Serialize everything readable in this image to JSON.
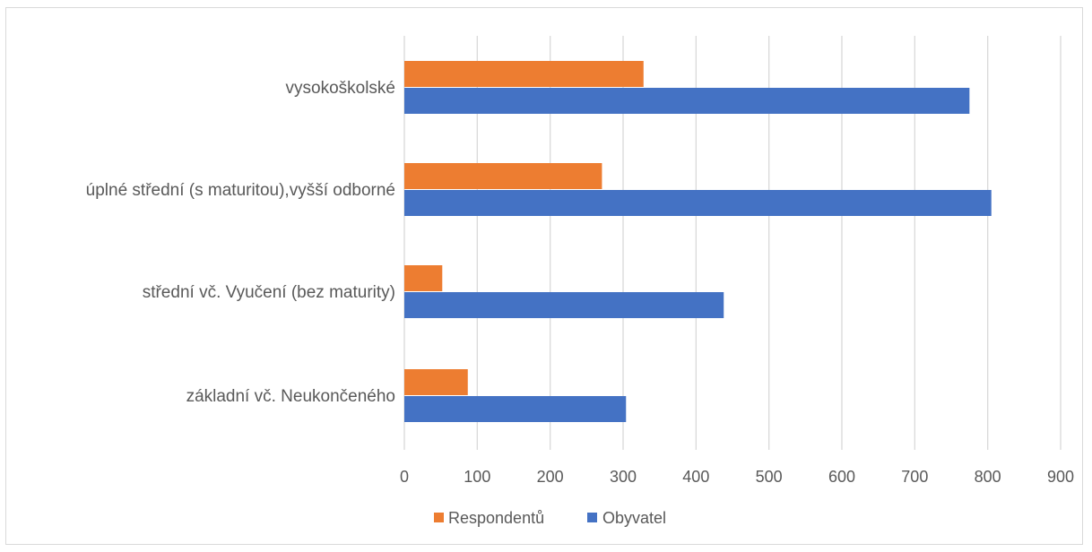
{
  "chart_data": {
    "type": "bar",
    "orientation": "horizontal",
    "categories": [
      "vysokoškolské",
      "úplné střední (s maturitou),vyšší odborné",
      "střední vč. Vyučení (bez maturity)",
      "základní vč. Neukončeného"
    ],
    "series": [
      {
        "name": "Respondentů",
        "color": "#ED7D31",
        "values": [
          328,
          271,
          52,
          87
        ]
      },
      {
        "name": "Obyvatel",
        "color": "#4472C4",
        "values": [
          775,
          805,
          438,
          304
        ]
      }
    ],
    "xlim": [
      0,
      900
    ],
    "x_ticks": [
      "0",
      "100",
      "200",
      "300",
      "400",
      "500",
      "600",
      "700",
      "800",
      "900"
    ],
    "grid": "vertical",
    "legend_position": "bottom"
  }
}
